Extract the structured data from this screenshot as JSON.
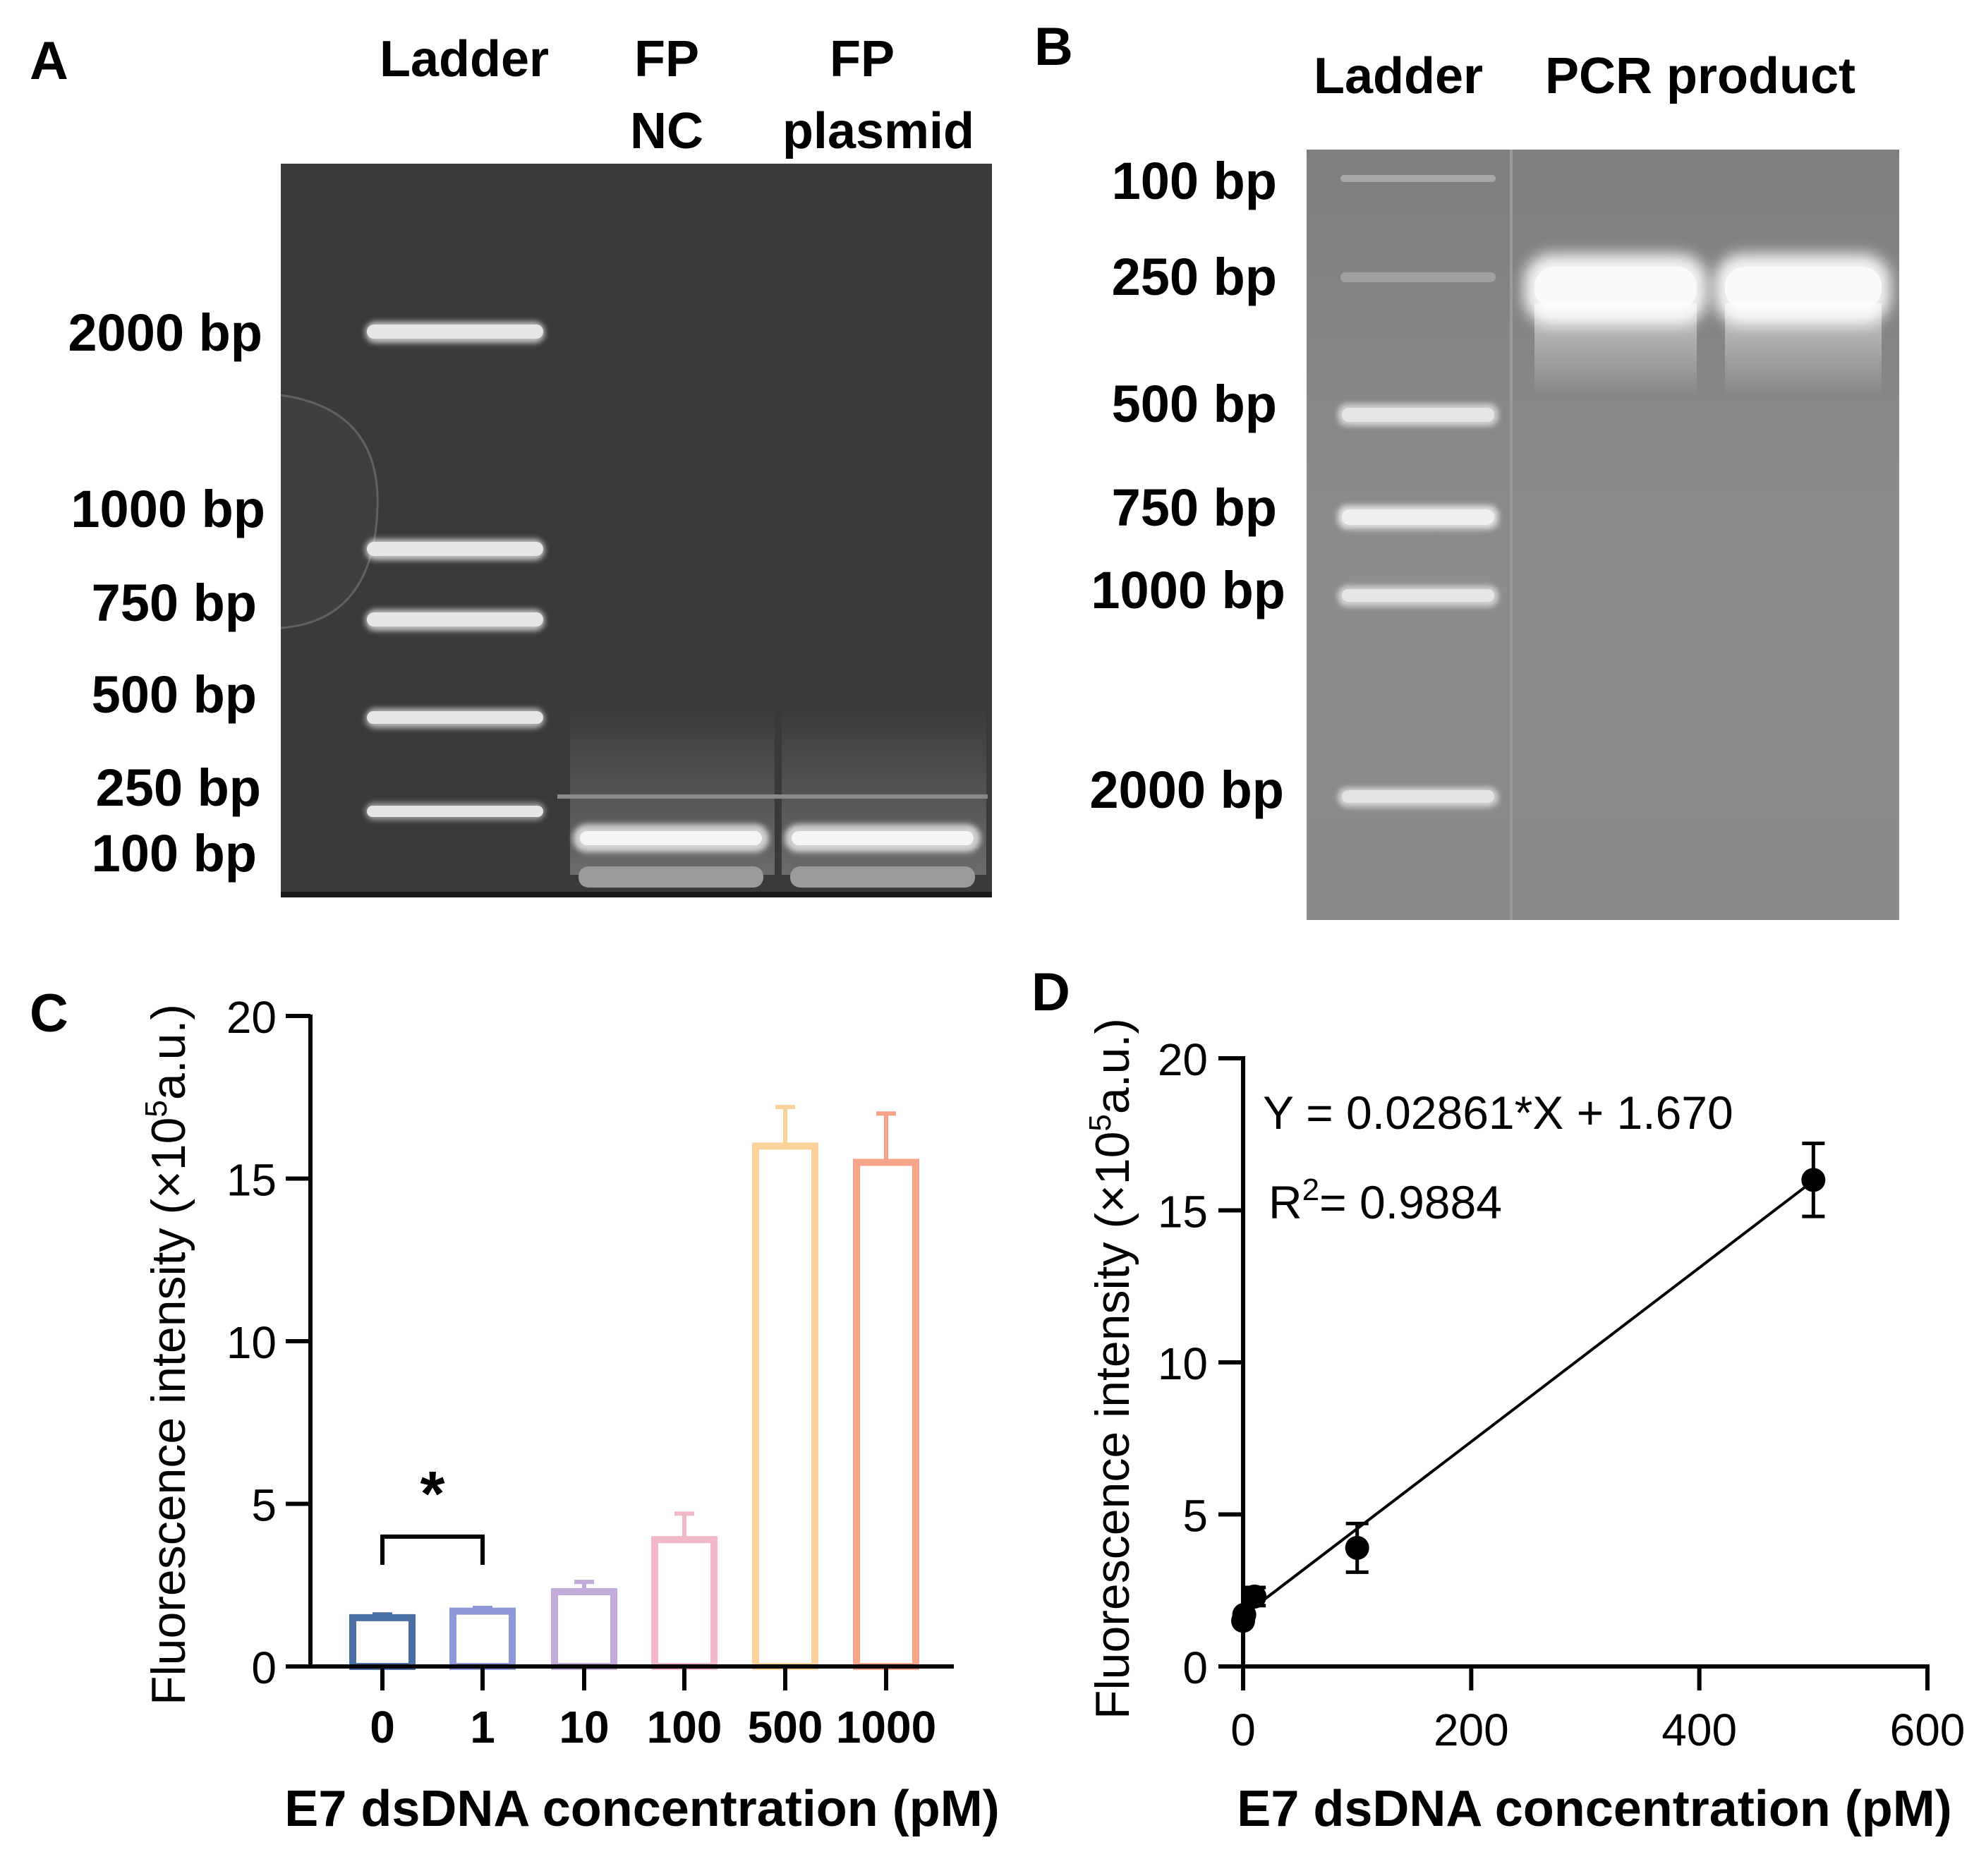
{
  "panel_a": {
    "letter": "A",
    "lane_labels": [
      [
        "Ladder"
      ],
      [
        "FP",
        "NC"
      ],
      [
        "FP",
        "plasmid"
      ]
    ],
    "ladder_labels": [
      "2000 bp",
      "1000 bp",
      "750 bp",
      "500 bp",
      "250 bp",
      "100 bp"
    ]
  },
  "panel_b": {
    "letter": "B",
    "lane_labels": [
      "Ladder",
      "PCR product"
    ],
    "ladder_labels": [
      "100 bp",
      "250 bp",
      "500 bp",
      "750 bp",
      "1000 bp",
      "2000 bp"
    ]
  },
  "chart_data": [
    {
      "panel": "C",
      "type": "bar",
      "xlabel": "E7 dsDNA concentration (pM)",
      "ylabel_main": "Fluorescence intensity (×10",
      "ylabel_sup": "5",
      "ylabel_tail": "a.u.)",
      "ylim": [
        0,
        20
      ],
      "yticks": [
        0,
        5,
        10,
        15,
        20
      ],
      "categories": [
        "0",
        "1",
        "10",
        "100",
        "500",
        "1000"
      ],
      "values": [
        1.5,
        1.7,
        2.3,
        3.9,
        16.0,
        15.5
      ],
      "errors": [
        0.1,
        0.1,
        0.3,
        0.8,
        1.2,
        1.5
      ],
      "colors": [
        "#4a6fa5",
        "#8e98d8",
        "#c3abdc",
        "#f3b8c8",
        "#fbd29a",
        "#f7a48a"
      ],
      "significance": {
        "between": [
          "0",
          "1"
        ],
        "label": "*"
      }
    },
    {
      "panel": "D",
      "type": "scatter",
      "xlabel": "E7 dsDNA concentration (pM)",
      "ylabel_main": "Fluorescence intensity (×10",
      "ylabel_sup": "5",
      "ylabel_tail": "a.u.)",
      "xlim": [
        0,
        600
      ],
      "ylim": [
        0,
        20
      ],
      "xticks": [
        0,
        200,
        400,
        600
      ],
      "yticks": [
        0,
        5,
        10,
        15,
        20
      ],
      "points": [
        {
          "x": 0,
          "y": 1.5,
          "err": 0.1
        },
        {
          "x": 1,
          "y": 1.7,
          "err": 0.1
        },
        {
          "x": 10,
          "y": 2.3,
          "err": 0.3
        },
        {
          "x": 100,
          "y": 3.9,
          "err": 0.8
        },
        {
          "x": 500,
          "y": 16.0,
          "err": 1.2
        }
      ],
      "fit": {
        "slope": 0.02861,
        "intercept": 1.67
      },
      "equation": "Y = 0.02861*X + 1.670",
      "r2_prefix": "R",
      "r2_sup": "2",
      "r2_value": "= 0.9884"
    }
  ]
}
